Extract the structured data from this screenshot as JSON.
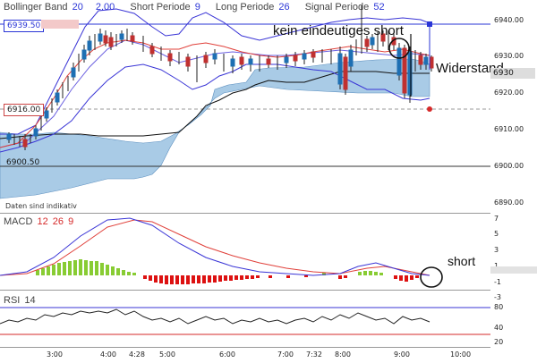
{
  "main_panel": {
    "legend": {
      "bollinger_label": "Bollinger Band",
      "bollinger_period": "20",
      "bollinger_dev": "2.00",
      "short_label": "Short Periode",
      "short_value": "9",
      "long_label": "Long Periode",
      "long_value": "26",
      "signal_label": "Signal Periode",
      "signal_value": "52"
    },
    "price_boxes": {
      "upper": "6939.50",
      "middle": "6916.00",
      "lower": "6900.50",
      "right_current": "6930"
    },
    "disclaimer": "Daten sind indikativ",
    "y_ticks": [
      "6940.00",
      "6930.00",
      "6920.00",
      "6910.00",
      "6900.00",
      "6890.00"
    ],
    "annotations": {
      "top_text": "kein eindeutiges short",
      "right_text": "Widerstand"
    }
  },
  "macd_panel": {
    "label": "MACD",
    "p1": "12",
    "p2": "26",
    "p3": "9",
    "y_ticks": [
      "7",
      "5",
      "3",
      "1",
      "-1",
      "-3"
    ],
    "annotation": "short"
  },
  "rsi_panel": {
    "label": "RSI",
    "period": "14",
    "y_ticks": [
      "80",
      "40",
      "20"
    ]
  },
  "time_axis": {
    "labels": [
      "3:00",
      "4:00",
      "4:28",
      "5:00",
      "6:00",
      "7:00",
      "7:32",
      "8:00",
      "9:00",
      "10:00"
    ]
  },
  "colors": {
    "bollinger_band": "#3a35d6",
    "ma_red": "#e0403a",
    "ichimoku_cloud": "#a9cbe6",
    "macd_positive": "#88cc33",
    "macd_negative": "#dd1111",
    "rsi_line": "#222222"
  }
}
